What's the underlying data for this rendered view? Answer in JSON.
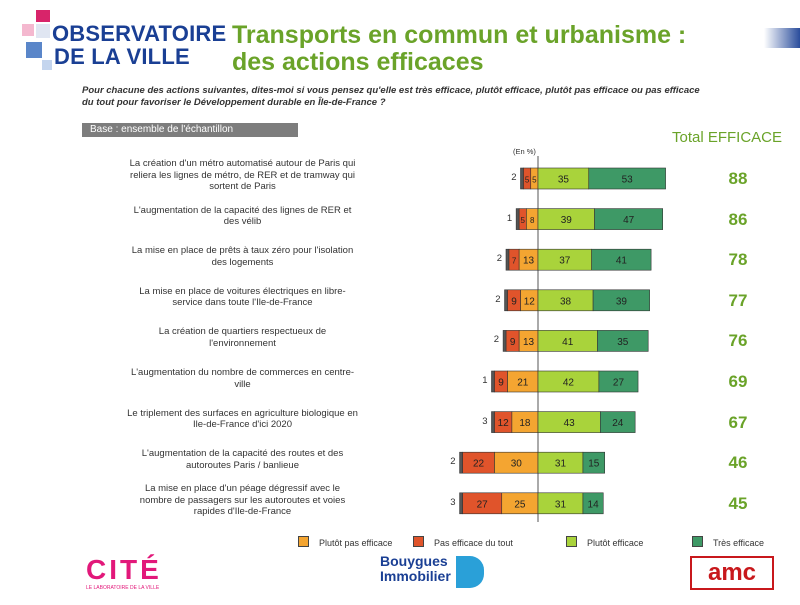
{
  "header": {
    "logo_line1": "OBSERVATOIRE",
    "logo_line2": "DE LA VILLE",
    "title_line1": "Transports en commun et urbanisme :",
    "title_line2": "des actions efficaces"
  },
  "question": "Pour chacune des actions suivantes, dites-moi si vous pensez qu'elle est très efficace, plutôt efficace, plutôt pas efficace ou pas efficace du tout pour favoriser le Développement durable en Île-de-France ?",
  "base_label": "Base : ensemble de l'échantillon",
  "footer": {
    "logo_left": "CITÉ",
    "logo_left_sub": "LE LABORATOIRE DE LA VILLE",
    "logo_mid_line1": "Bouygues",
    "logo_mid_line2": "Immobilier",
    "logo_right": "amc"
  },
  "colors": {
    "pas_efficace_du_tout": "#e0542b",
    "plutot_pas_efficace": "#f4a531",
    "plutot_efficace": "#a9d33b",
    "tres_efficace": "#3e9966",
    "total_text": "#6aa329",
    "title": "#6aa329",
    "logo_blue": "#1a3f94"
  },
  "chart_data": {
    "type": "bar",
    "unit_label": "(En %)",
    "total_header": "Total EFFICACE",
    "legend": [
      {
        "key": "plutot_pas_efficace",
        "label": "Plutôt pas efficace"
      },
      {
        "key": "pas_efficace_du_tout",
        "label": "Pas efficace du tout"
      },
      {
        "key": "plutot_efficace",
        "label": "Plutôt efficace"
      },
      {
        "key": "tres_efficace",
        "label": "Très efficace"
      }
    ],
    "rows": [
      {
        "label_lines": [
          "La création d'un métro automatisé autour de Paris qui",
          "reliera les lignes de métro, de RER et de tramway qui",
          "sortent de Paris"
        ],
        "nsp": 2,
        "pas_du_tout": 5,
        "plutot_pas": 5,
        "plutot": 35,
        "tres": 53,
        "total": 88
      },
      {
        "label_lines": [
          "L'augmentation de la capacité des lignes de RER et",
          "des vélib"
        ],
        "nsp": 1,
        "pas_du_tout": 5,
        "plutot_pas": 8,
        "plutot": 39,
        "tres": 47,
        "total": 86
      },
      {
        "label_lines": [
          "La mise en place de prêts à taux zéro pour l'isolation",
          "des logements"
        ],
        "nsp": 2,
        "pas_du_tout": 7,
        "plutot_pas": 13,
        "plutot": 37,
        "tres": 41,
        "total": 78
      },
      {
        "label_lines": [
          "La mise en place de voitures électriques en libre-",
          "service dans toute l'Ile-de-France"
        ],
        "nsp": 2,
        "pas_du_tout": 9,
        "plutot_pas": 12,
        "plutot": 38,
        "tres": 39,
        "total": 77
      },
      {
        "label_lines": [
          "La création de quartiers respectueux de",
          "l'environnement"
        ],
        "nsp": 2,
        "pas_du_tout": 9,
        "plutot_pas": 13,
        "plutot": 41,
        "tres": 35,
        "total": 76
      },
      {
        "label_lines": [
          "L'augmentation du nombre de commerces en centre-",
          "ville"
        ],
        "nsp": 1,
        "pas_du_tout": 9,
        "plutot_pas": 21,
        "plutot": 42,
        "tres": 27,
        "total": 69
      },
      {
        "label_lines": [
          "Le triplement des surfaces en agriculture biologique en",
          "Ile-de-France d'ici 2020"
        ],
        "nsp": 3,
        "pas_du_tout": 12,
        "plutot_pas": 18,
        "plutot": 43,
        "tres": 24,
        "total": 67
      },
      {
        "label_lines": [
          "L'augmentation de la capacité des routes et des",
          "autoroutes Paris / banlieue"
        ],
        "nsp": 2,
        "pas_du_tout": 22,
        "plutot_pas": 30,
        "plutot": 31,
        "tres": 15,
        "total": 46
      },
      {
        "label_lines": [
          "La mise en place d'un péage dégressif avec le",
          "nombre de passagers sur les autoroutes et voies",
          "rapides d'Ile-de-France"
        ],
        "nsp": 3,
        "pas_du_tout": 27,
        "plutot_pas": 25,
        "plutot": 31,
        "tres": 14,
        "total": 45
      }
    ]
  }
}
